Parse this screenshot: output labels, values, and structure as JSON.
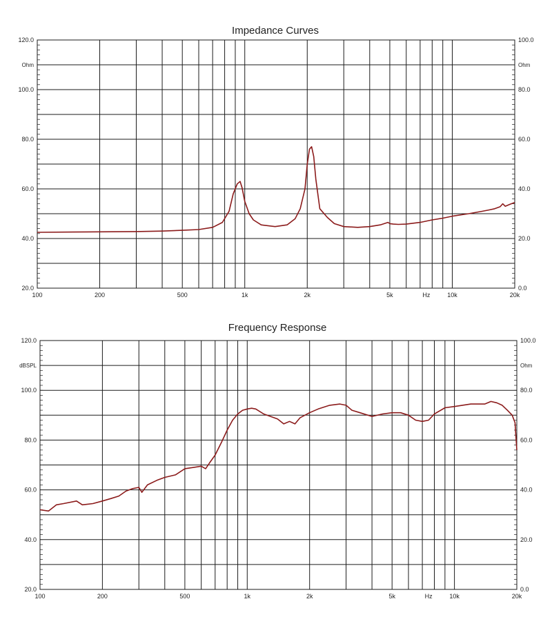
{
  "chart_data": [
    {
      "type": "line",
      "title": "Impedance Curves",
      "x_scale": "log",
      "xlim": [
        100,
        20000
      ],
      "ylim": [
        20,
        120
      ],
      "right_ylim": [
        0,
        100
      ],
      "y_gridlines": [
        20,
        30,
        40,
        50,
        60,
        70,
        80,
        90,
        100,
        110,
        120
      ],
      "y_tick_labels": [
        "120.0",
        "100.0",
        "80.0",
        "60.0",
        "40.0",
        "20.0"
      ],
      "y_unit": "Ohm",
      "right_tick_labels": [
        "100.0",
        "80.0",
        "60.0",
        "40.0",
        "20.0",
        "0.0"
      ],
      "right_unit": "Ohm",
      "x_gridlines": [
        200,
        300,
        400,
        500,
        600,
        700,
        800,
        900,
        1000,
        2000,
        3000,
        4000,
        5000,
        6000,
        7000,
        8000,
        9000,
        10000
      ],
      "x_tick_labels": [
        "100",
        "200",
        "500",
        "1k",
        "2k",
        "5k",
        "Hz",
        "10k",
        "20k"
      ],
      "grid": true,
      "line_color": "#8b1a1a",
      "series": [
        {
          "x": [
            100,
            150,
            200,
            300,
            400,
            500,
            600,
            700,
            780,
            840,
            880,
            920,
            950,
            970,
            1000,
            1050,
            1100,
            1200,
            1400,
            1600,
            1750,
            1850,
            1950,
            2000,
            2050,
            2100,
            2150,
            2200,
            2300,
            2500,
            2700,
            3000,
            3500,
            4000,
            4500,
            4900,
            5000,
            5200,
            5500,
            6000,
            7000,
            8000,
            9000,
            10000,
            12000,
            14000,
            15000,
            16000,
            17000,
            17500,
            18000,
            19000,
            20000
          ],
          "y": [
            42.5,
            42.6,
            42.7,
            42.8,
            43.0,
            43.3,
            43.6,
            44.5,
            46.5,
            51.0,
            58.0,
            62.0,
            63.0,
            60.5,
            55.0,
            50.0,
            47.5,
            45.5,
            44.8,
            45.5,
            48.0,
            52.0,
            60.0,
            70.0,
            76.0,
            77.0,
            73.0,
            64.0,
            52.0,
            48.5,
            46.0,
            44.8,
            44.5,
            44.8,
            45.5,
            46.5,
            46.0,
            45.8,
            45.7,
            45.8,
            46.5,
            47.5,
            48.2,
            49.0,
            50.0,
            51.0,
            51.5,
            52.0,
            52.8,
            54.0,
            53.0,
            53.8,
            54.5
          ]
        }
      ]
    },
    {
      "type": "line",
      "title": "Frequency Response",
      "x_scale": "log",
      "xlim": [
        100,
        20000
      ],
      "ylim": [
        20,
        120
      ],
      "right_ylim": [
        0,
        100
      ],
      "y_gridlines": [
        20,
        30,
        40,
        50,
        60,
        70,
        80,
        90,
        100,
        110,
        120
      ],
      "y_tick_labels": [
        "120.0",
        "100.0",
        "80.0",
        "60.0",
        "40.0",
        "20.0"
      ],
      "y_unit": "dBSPL",
      "right_tick_labels": [
        "100.0",
        "80.0",
        "60.0",
        "40.0",
        "20.0",
        "0.0"
      ],
      "right_unit": "Ohm",
      "x_gridlines": [
        200,
        300,
        400,
        500,
        600,
        700,
        800,
        900,
        1000,
        2000,
        3000,
        4000,
        5000,
        6000,
        7000,
        8000,
        9000,
        10000
      ],
      "x_tick_labels": [
        "100",
        "200",
        "500",
        "1k",
        "2k",
        "5k",
        "Hz",
        "10k",
        "20k"
      ],
      "grid": true,
      "line_color": "#8b1a1a",
      "series": [
        {
          "x": [
            100,
            110,
            120,
            130,
            150,
            160,
            180,
            200,
            220,
            240,
            260,
            280,
            300,
            310,
            330,
            370,
            400,
            450,
            500,
            550,
            600,
            630,
            660,
            700,
            750,
            800,
            850,
            900,
            950,
            1000,
            1050,
            1100,
            1200,
            1400,
            1500,
            1600,
            1700,
            1800,
            2000,
            2200,
            2500,
            2800,
            3000,
            3200,
            3500,
            4000,
            4500,
            5000,
            5500,
            6000,
            6500,
            7000,
            7500,
            8000,
            9000,
            10000,
            12000,
            13000,
            14000,
            15000,
            16000,
            17000,
            18000,
            19000,
            19600,
            20000
          ],
          "y": [
            52.0,
            51.5,
            54.0,
            54.5,
            55.5,
            54.0,
            54.5,
            55.5,
            56.5,
            57.5,
            59.5,
            60.5,
            61.0,
            59.0,
            62.0,
            64.0,
            65.0,
            66.0,
            68.5,
            69.0,
            69.5,
            68.5,
            71.0,
            74.0,
            79.0,
            84.0,
            88.0,
            90.5,
            92.0,
            92.5,
            92.8,
            92.5,
            90.5,
            88.5,
            86.5,
            87.5,
            86.5,
            89.0,
            91.0,
            92.5,
            94.0,
            94.5,
            94.0,
            92.0,
            91.0,
            89.5,
            90.5,
            91.0,
            91.0,
            90.0,
            88.0,
            87.5,
            88.0,
            90.5,
            93.0,
            93.5,
            94.5,
            94.5,
            94.5,
            95.5,
            95.0,
            94.0,
            92.0,
            90.0,
            87.0,
            76.0
          ]
        }
      ]
    }
  ]
}
